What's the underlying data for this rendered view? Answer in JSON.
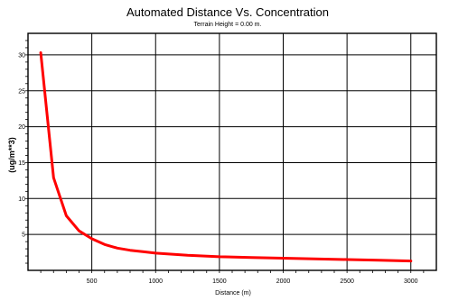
{
  "chart_data": {
    "type": "line",
    "title": "Automated Distance Vs. Concentration",
    "subtitle": "Terrain Height = 0.00 m.",
    "xlabel": "Distance (m)",
    "ylabel": "(ug/m**3)",
    "xlim": [
      0,
      3200
    ],
    "ylim": [
      0,
      33
    ],
    "x_ticks": [
      500,
      1000,
      1500,
      2000,
      2500,
      3000
    ],
    "y_ticks": [
      5,
      10,
      15,
      20,
      25,
      30
    ],
    "grid": true,
    "series": [
      {
        "color": "#ff0000",
        "x": [
          100,
          200,
          300,
          400,
          500,
          600,
          700,
          800,
          900,
          1000,
          1250,
          1500,
          1750,
          2000,
          2500,
          2750,
          3000
        ],
        "y": [
          30.3,
          12.9,
          7.6,
          5.5,
          4.4,
          3.6,
          3.1,
          2.8,
          2.6,
          2.4,
          2.1,
          1.9,
          1.8,
          1.7,
          1.5,
          1.4,
          1.3
        ]
      }
    ]
  }
}
